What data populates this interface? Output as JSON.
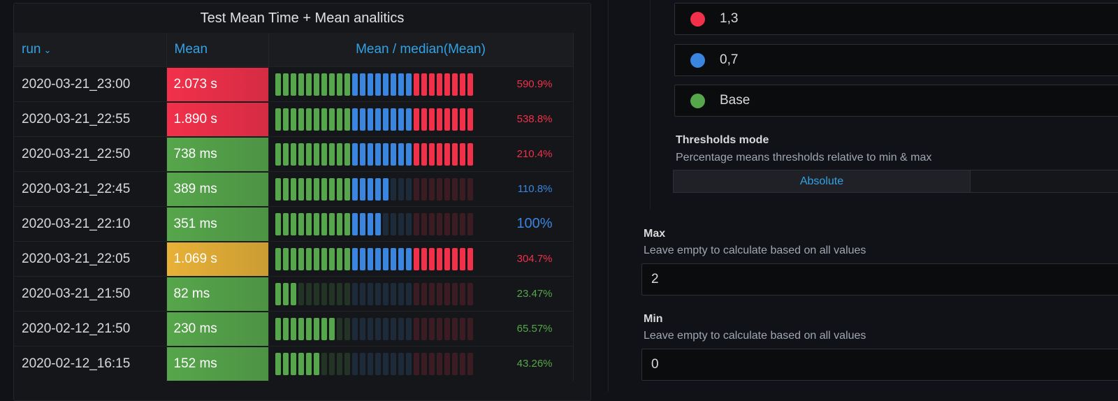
{
  "panel": {
    "title": "Test Mean Time + Mean analitics",
    "columns": {
      "run": "run",
      "mean": "Mean",
      "ratio": "Mean / median(Mean)"
    }
  },
  "colors": {
    "red": "#f2304a",
    "green": "#56a64b",
    "orange": "#e8b137",
    "blue": "#3a85df",
    "dim_green": "#233325",
    "dim_blue": "#1d2a3a",
    "dim_red": "#3a1c22"
  },
  "rows": [
    {
      "run": "2020-03-21_23:00",
      "mean": "2.073 s",
      "ratio": "590.9%",
      "level": 1.0,
      "mean_color": "red",
      "pct_color": "red",
      "pct_big": false
    },
    {
      "run": "2020-03-21_22:55",
      "mean": "1.890 s",
      "ratio": "538.8%",
      "level": 1.0,
      "mean_color": "red",
      "pct_color": "red",
      "pct_big": false
    },
    {
      "run": "2020-03-21_22:50",
      "mean": "738 ms",
      "ratio": "210.4%",
      "level": 1.0,
      "mean_color": "green",
      "pct_color": "red",
      "pct_big": false
    },
    {
      "run": "2020-03-21_22:45",
      "mean": "389 ms",
      "ratio": "110.8%",
      "level": 0.577,
      "mean_color": "green",
      "pct_color": "blue",
      "pct_big": false
    },
    {
      "run": "2020-03-21_22:10",
      "mean": "351 ms",
      "ratio": "100%",
      "level": 0.538,
      "mean_color": "green",
      "pct_color": "blue",
      "pct_big": true
    },
    {
      "run": "2020-03-21_22:05",
      "mean": "1.069 s",
      "ratio": "304.7%",
      "level": 1.0,
      "mean_color": "orange",
      "pct_color": "red",
      "pct_big": false
    },
    {
      "run": "2020-03-21_21:50",
      "mean": "82 ms",
      "ratio": "23.47%",
      "level": 0.115,
      "mean_color": "green",
      "pct_color": "green",
      "pct_big": false
    },
    {
      "run": "2020-02-12_21:50",
      "mean": "230 ms",
      "ratio": "65.57%",
      "level": 0.308,
      "mean_color": "green",
      "pct_color": "green",
      "pct_big": false
    },
    {
      "run": "2020-02-12_16:15",
      "mean": "152 ms",
      "ratio": "43.26%",
      "level": 0.231,
      "mean_color": "green",
      "pct_color": "green",
      "pct_big": false
    }
  ],
  "thresholds": [
    {
      "value": "1,3",
      "color": "#f2304a"
    },
    {
      "value": "0,7",
      "color": "#3a85df"
    },
    {
      "value": "Base",
      "color": "#56a64b"
    }
  ],
  "thresholds_mode": {
    "label": "Thresholds mode",
    "description": "Percentage means thresholds relative to min & max",
    "options": [
      "Absolute",
      ""
    ],
    "selected": "Absolute"
  },
  "max_field": {
    "label": "Max",
    "description": "Leave empty to calculate based on all values",
    "value": "2"
  },
  "min_field": {
    "label": "Min",
    "description": "Leave empty to calculate based on all values",
    "value": "0"
  }
}
